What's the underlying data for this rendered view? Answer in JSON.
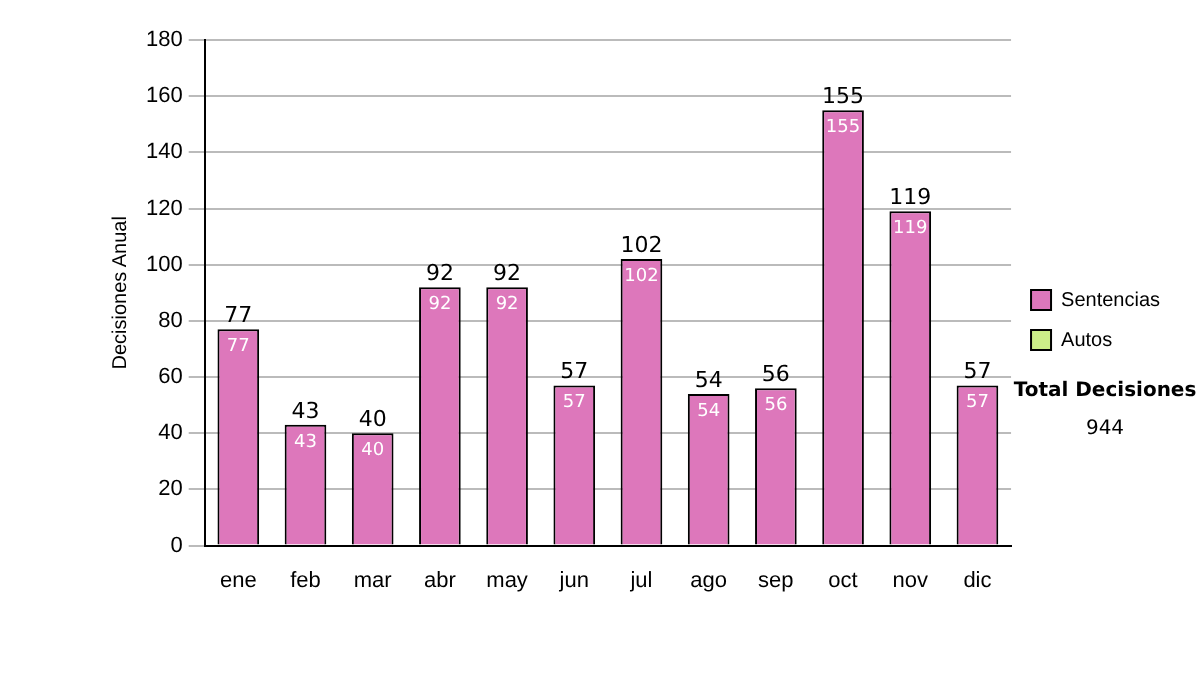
{
  "chart_data": {
    "type": "bar",
    "ylabel": "Decisiones Anual",
    "stacked": true,
    "categories": [
      "ene",
      "feb",
      "mar",
      "abr",
      "may",
      "jun",
      "jul",
      "ago",
      "sep",
      "oct",
      "nov",
      "dic"
    ],
    "series": [
      {
        "name": "Sentencias",
        "color": "#dd77bb",
        "values": [
          77,
          43,
          40,
          92,
          92,
          57,
          102,
          54,
          56,
          155,
          119,
          57
        ],
        "value_labels": [
          "77",
          "43",
          "40",
          "92",
          "92",
          "57",
          "102",
          "54",
          "56",
          "155",
          "119",
          "57"
        ]
      },
      {
        "name": "Autos",
        "color": "#ccee88",
        "values": [
          0,
          0,
          0,
          0,
          0,
          0,
          0,
          0,
          0,
          0,
          0,
          0
        ]
      }
    ],
    "totals": [
      "77",
      "43",
      "40",
      "92",
      "92",
      "57",
      "102",
      "54",
      "56",
      "155",
      "119",
      "57"
    ],
    "ylim": [
      0,
      180
    ],
    "yticks": [
      0,
      20,
      40,
      60,
      80,
      100,
      120,
      140,
      160,
      180
    ],
    "grid": "y",
    "legend": "right",
    "annotations": [
      "Total Decisiones",
      "944"
    ]
  }
}
